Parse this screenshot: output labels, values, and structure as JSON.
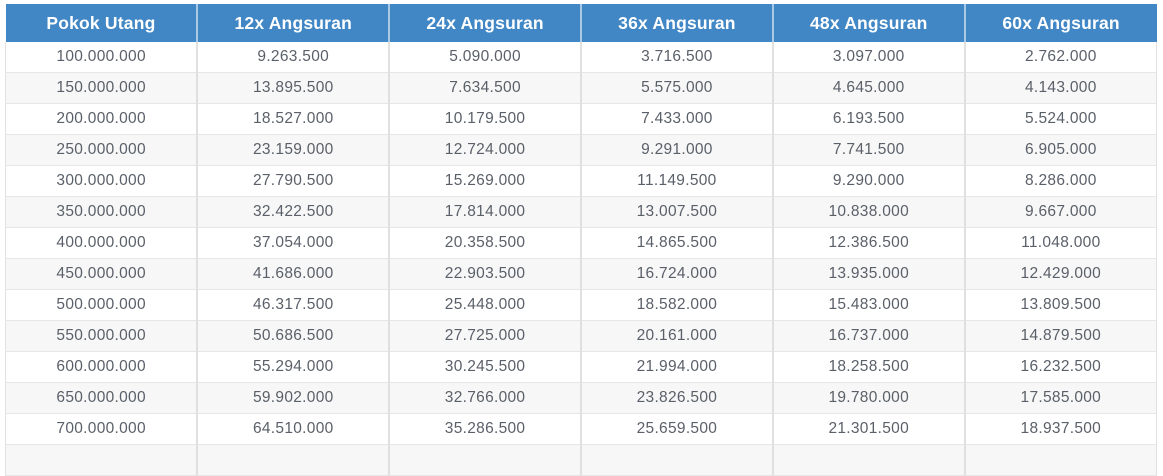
{
  "chart_data": {
    "type": "table",
    "title": "",
    "columns": [
      "Pokok Utang",
      "12x Angsuran",
      "24x Angsuran",
      "36x Angsuran",
      "48x Angsuran",
      "60x Angsuran"
    ],
    "rows": [
      [
        "100.000.000",
        "9.263.500",
        "5.090.000",
        "3.716.500",
        "3.097.000",
        "2.762.000"
      ],
      [
        "150.000.000",
        "13.895.500",
        "7.634.500",
        "5.575.000",
        "4.645.000",
        "4.143.000"
      ],
      [
        "200.000.000",
        "18.527.000",
        "10.179.500",
        "7.433.000",
        "6.193.500",
        "5.524.000"
      ],
      [
        "250.000.000",
        "23.159.000",
        "12.724.000",
        "9.291.000",
        "7.741.500",
        "6.905.000"
      ],
      [
        "300.000.000",
        "27.790.500",
        "15.269.000",
        "11.149.500",
        "9.290.000",
        "8.286.000"
      ],
      [
        "350.000.000",
        "32.422.500",
        "17.814.000",
        "13.007.500",
        "10.838.000",
        "9.667.000"
      ],
      [
        "400.000.000",
        "37.054.000",
        "20.358.500",
        "14.865.500",
        "12.386.500",
        "11.048.000"
      ],
      [
        "450.000.000",
        "41.686.000",
        "22.903.500",
        "16.724.000",
        "13.935.000",
        "12.429.000"
      ],
      [
        "500.000.000",
        "46.317.500",
        "25.448.000",
        "18.582.000",
        "15.483.000",
        "13.809.500"
      ],
      [
        "550.000.000",
        "50.686.500",
        "27.725.000",
        "20.161.000",
        "16.737.000",
        "14.879.500"
      ],
      [
        "600.000.000",
        "55.294.000",
        "30.245.500",
        "21.994.000",
        "18.258.500",
        "16.232.500"
      ],
      [
        "650.000.000",
        "59.902.000",
        "32.766.000",
        "23.826.500",
        "19.780.000",
        "17.585.000"
      ],
      [
        "700.000.000",
        "64.510.000",
        "35.286.500",
        "25.659.500",
        "21.301.500",
        "18.937.500"
      ]
    ],
    "layout_hints": {
      "grid": "on",
      "alternating_rows": true,
      "last_row_clipped_at_bottom": true
    }
  },
  "colors": {
    "header_bg": "#4187c5",
    "header_text": "#ffffff",
    "row_alt_bg": "#f7f7f7",
    "body_text": "#5a6069",
    "border": "#e0e0e0"
  }
}
